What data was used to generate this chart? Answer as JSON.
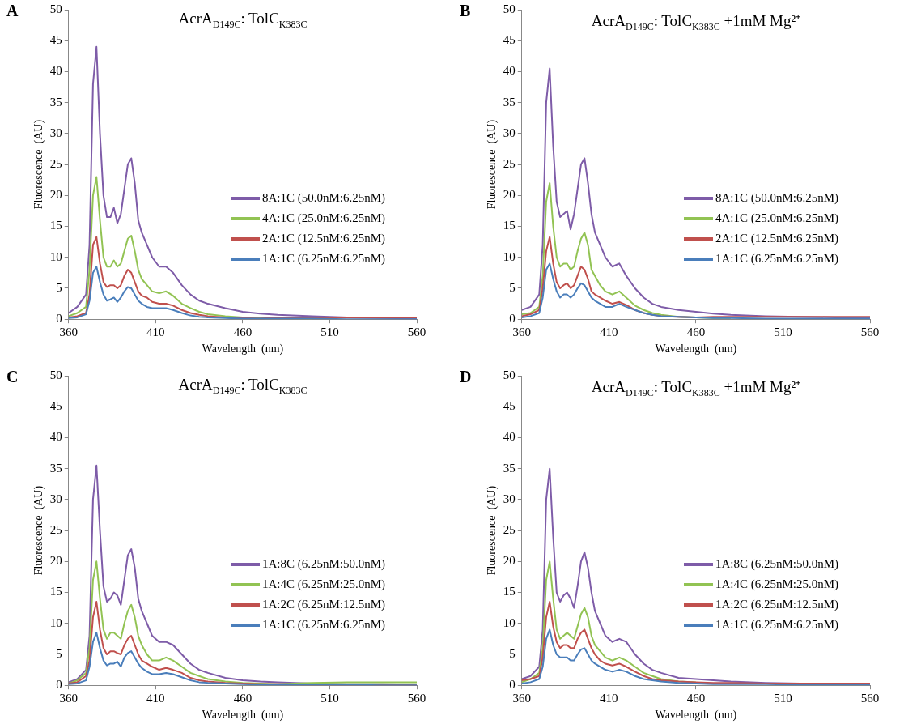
{
  "chart_data": [
    {
      "type": "line",
      "title": "AcrA$_{D149C}$:  TolC$_{K383C}$",
      "annotations": [
        "A"
      ],
      "xlabel": "Wavelength  (nm)",
      "ylabel": "Fluorescence  (AU)",
      "xlim": [
        360,
        560
      ],
      "xticks": [
        360,
        410,
        460,
        510,
        560
      ],
      "ylim": [
        0,
        50
      ],
      "yticks": [
        0,
        5,
        10,
        15,
        20,
        25,
        30,
        35,
        40,
        45,
        50
      ],
      "grid": false,
      "legend": "right",
      "marker": "none",
      "line_style": "solid",
      "x": [
        360,
        365,
        370,
        372,
        374,
        376,
        378,
        380,
        382,
        384,
        386,
        388,
        390,
        392,
        394,
        396,
        398,
        400,
        402,
        405,
        408,
        412,
        416,
        420,
        425,
        430,
        435,
        440,
        450,
        460,
        470,
        480,
        500,
        520,
        540,
        560
      ],
      "series": [
        {
          "name": "8A:1C (50.0nM:6.25nM)",
          "color": "#7e5ca8",
          "values": [
            1,
            2,
            4,
            12,
            38,
            44,
            30,
            20,
            16.5,
            16.5,
            18,
            15.5,
            17,
            21,
            25,
            26,
            22,
            16,
            14,
            12,
            10,
            8.5,
            8.5,
            7.5,
            5.5,
            4,
            3,
            2.5,
            1.8,
            1.2,
            0.9,
            0.7,
            0.5,
            0.3,
            0.2,
            0.1
          ]
        },
        {
          "name": "4A:1C (25.0nM:6.25nM)",
          "color": "#92c353",
          "values": [
            0.5,
            1,
            2,
            8,
            20,
            23,
            16,
            10,
            8.5,
            8.5,
            9.5,
            8.5,
            9,
            11,
            13,
            13.5,
            11,
            8,
            6.5,
            5.5,
            4.5,
            4.2,
            4.5,
            3.8,
            2.5,
            1.8,
            1.2,
            0.8,
            0.5,
            0.3,
            0.2,
            0.2,
            0.1,
            null,
            null,
            null
          ]
        },
        {
          "name": "2A:1C (12.5nM:6.25nM)",
          "color": "#c0504d",
          "values": [
            0.3,
            0.5,
            1,
            4,
            12,
            13.3,
            9,
            6,
            5.2,
            5.5,
            5.5,
            5,
            5.5,
            7,
            8,
            7.5,
            6,
            4.5,
            3.8,
            3.5,
            2.8,
            2.5,
            2.5,
            2.2,
            1.5,
            1,
            0.7,
            0.5,
            0.3,
            0.2,
            0.1,
            0.3,
            0.3,
            0.3,
            0.3,
            0.3
          ]
        },
        {
          "name": "1A:1C (6.25nM:6.25nM)",
          "color": "#4a7ebb",
          "values": [
            0.2,
            0.3,
            0.8,
            3,
            7.5,
            8.5,
            6,
            4,
            3,
            3.2,
            3.5,
            2.8,
            3.5,
            4.5,
            5.2,
            5,
            4,
            3,
            2.5,
            2,
            1.8,
            1.8,
            1.8,
            1.5,
            1,
            0.6,
            0.4,
            0.3,
            0.2,
            0.1,
            0.1,
            0.1,
            0.1,
            0,
            0,
            0
          ]
        }
      ]
    },
    {
      "type": "line",
      "title": "AcrA$_{D149C}$:  TolC$_{K383C}$  +1mM Mg²⁺",
      "annotations": [
        "B"
      ],
      "xlabel": "Wavelength  (nm)",
      "ylabel": "Fluorescence  (AU)",
      "xlim": [
        360,
        560
      ],
      "xticks": [
        360,
        410,
        460,
        510,
        560
      ],
      "ylim": [
        0,
        50
      ],
      "yticks": [
        0,
        5,
        10,
        15,
        20,
        25,
        30,
        35,
        40,
        45,
        50
      ],
      "grid": false,
      "legend": "right",
      "marker": "none",
      "line_style": "solid",
      "x": [
        360,
        365,
        370,
        372,
        374,
        376,
        378,
        380,
        382,
        384,
        386,
        388,
        390,
        392,
        394,
        396,
        398,
        400,
        402,
        405,
        408,
        412,
        416,
        420,
        425,
        430,
        435,
        440,
        450,
        460,
        470,
        480,
        500,
        520,
        540,
        560
      ],
      "series": [
        {
          "name": "8A:1C (50.0nM:6.25nM)",
          "color": "#7e5ca8",
          "values": [
            1.5,
            2,
            4,
            12,
            35,
            40.5,
            28,
            19,
            16.5,
            17,
            17.5,
            14.5,
            17,
            21,
            25,
            26,
            22,
            17,
            14,
            12,
            10,
            8.5,
            9,
            7,
            5,
            3.5,
            2.5,
            2,
            1.5,
            1.2,
            0.9,
            0.7,
            0.5,
            0.4,
            0.3,
            0.2
          ]
        },
        {
          "name": "4A:1C (25.0nM:6.25nM)",
          "color": "#92c353",
          "values": [
            0.8,
            1,
            2,
            7,
            19,
            22,
            15,
            10,
            8.5,
            9,
            9,
            8,
            8.5,
            11,
            13,
            14,
            12,
            8,
            7,
            5.5,
            4.5,
            4,
            4.5,
            3.5,
            2.2,
            1.5,
            1,
            0.7,
            0.4,
            0.3,
            0.2,
            0.2,
            null,
            null,
            null,
            null
          ]
        },
        {
          "name": "2A:1C (12.5nM:6.25nM)",
          "color": "#c0504d",
          "values": [
            0.5,
            0.8,
            1.5,
            5,
            11,
            13.3,
            9,
            6,
            5,
            5.5,
            5.8,
            5,
            5.5,
            7,
            8.5,
            8,
            6.5,
            4.5,
            4,
            3.5,
            3,
            2.5,
            2.8,
            2.3,
            1.5,
            1,
            0.7,
            0.5,
            0.4,
            0.3,
            0.4,
            0.4,
            0.4,
            0.4,
            0.4,
            0.4
          ]
        },
        {
          "name": "1A:1C (6.25nM:6.25nM)",
          "color": "#4a7ebb",
          "values": [
            0.3,
            0.5,
            1,
            3.5,
            8,
            9,
            6.5,
            4.5,
            3.5,
            4,
            4,
            3.5,
            4,
            5,
            5.8,
            5.5,
            4.5,
            3.5,
            3,
            2.5,
            2,
            2,
            2.5,
            2,
            1.5,
            1,
            0.7,
            0.5,
            0.4,
            0.3,
            0.2,
            0.2,
            0.1,
            0.1,
            0.1,
            0.1
          ]
        }
      ]
    },
    {
      "type": "line",
      "title": "AcrA$_{D149C}$:  TolC$_{K383C}$",
      "annotations": [
        "C"
      ],
      "xlabel": "Wavelength  (nm)",
      "ylabel": "Fluorescence  (AU)",
      "xlim": [
        360,
        560
      ],
      "xticks": [
        360,
        410,
        460,
        510,
        560
      ],
      "ylim": [
        0,
        50
      ],
      "yticks": [
        0,
        5,
        10,
        15,
        20,
        25,
        30,
        35,
        40,
        45,
        50
      ],
      "grid": false,
      "legend": "right",
      "marker": "none",
      "line_style": "solid",
      "x": [
        360,
        365,
        370,
        372,
        374,
        376,
        378,
        380,
        382,
        384,
        386,
        388,
        390,
        392,
        394,
        396,
        398,
        400,
        402,
        405,
        408,
        412,
        416,
        420,
        425,
        430,
        435,
        440,
        450,
        460,
        470,
        480,
        500,
        520,
        540,
        560
      ],
      "series": [
        {
          "name": "1A:8C (6.25nM:50.0nM)",
          "color": "#7e5ca8",
          "values": [
            0.5,
            1,
            2.5,
            8,
            30,
            35.5,
            25,
            16,
            13.5,
            14,
            15,
            14.5,
            13,
            17,
            21,
            22,
            19,
            14,
            12,
            10,
            8,
            7,
            7,
            6.5,
            5,
            3.5,
            2.5,
            2,
            1.2,
            0.8,
            0.6,
            0.5,
            0.3,
            0.2,
            0.2,
            0.1
          ]
        },
        {
          "name": "1A:4C (6.25nM:25.0nM)",
          "color": "#92c353",
          "values": [
            0.3,
            0.8,
            2,
            6,
            17,
            20,
            14,
            9,
            7.5,
            8.5,
            8.5,
            8,
            7.5,
            10,
            12,
            13,
            11,
            8,
            6.5,
            5,
            4,
            4,
            4.5,
            4,
            3,
            2,
            1.5,
            1,
            0.6,
            0.4,
            0.3,
            0.2,
            0.4,
            0.5,
            0.5,
            0.5
          ]
        },
        {
          "name": "1A:2C (6.25nM:12.5nM)",
          "color": "#c0504d",
          "values": [
            0.3,
            0.5,
            1.5,
            4,
            11,
            13.5,
            9,
            6,
            5,
            5.5,
            5.5,
            5.2,
            5,
            6.5,
            7.5,
            8,
            6.5,
            5,
            4,
            3.5,
            3,
            2.5,
            2.8,
            2.5,
            2,
            1.2,
            0.8,
            0.6,
            0.4,
            0.3,
            0.2,
            0.2,
            0.1,
            0.1,
            0.1,
            0.1
          ]
        },
        {
          "name": "1A:1C (6.25nM:6.25nM)",
          "color": "#4a7ebb",
          "values": [
            0.2,
            0.3,
            0.8,
            3,
            7,
            8.5,
            6,
            4,
            3.2,
            3.5,
            3.5,
            3.8,
            3,
            4.5,
            5.2,
            5.5,
            4.5,
            3.5,
            2.8,
            2.2,
            1.8,
            1.8,
            2,
            1.8,
            1.3,
            0.8,
            0.5,
            0.4,
            0.3,
            0.2,
            0.1,
            0.1,
            0.1,
            0.1,
            0,
            0
          ]
        }
      ]
    },
    {
      "type": "line",
      "title": "AcrA$_{D149C}$:  TolC$_{K383C}$  +1mM Mg²⁺",
      "annotations": [
        "D"
      ],
      "xlabel": "Wavelength  (nm)",
      "ylabel": "Fluorescence  (AU)",
      "xlim": [
        360,
        560
      ],
      "xticks": [
        360,
        410,
        460,
        510,
        560
      ],
      "ylim": [
        0,
        50
      ],
      "yticks": [
        0,
        5,
        10,
        15,
        20,
        25,
        30,
        35,
        40,
        45,
        50
      ],
      "grid": false,
      "legend": "right",
      "marker": "none",
      "line_style": "solid",
      "x": [
        360,
        365,
        370,
        372,
        374,
        376,
        378,
        380,
        382,
        384,
        386,
        388,
        390,
        392,
        394,
        396,
        398,
        400,
        402,
        405,
        408,
        412,
        416,
        420,
        425,
        430,
        435,
        440,
        450,
        460,
        470,
        480,
        500,
        520,
        540,
        560
      ],
      "series": [
        {
          "name": "1A:8C (6.25nM:50.0nM)",
          "color": "#7e5ca8",
          "values": [
            1,
            1.5,
            3,
            9,
            30,
            35,
            24,
            15,
            13.5,
            14.5,
            15,
            14,
            12.5,
            16,
            20,
            21.5,
            19,
            15,
            12,
            10,
            8,
            7,
            7.5,
            7,
            5,
            3.5,
            2.5,
            2,
            1.2,
            1,
            0.8,
            0.6,
            0.4,
            0.3,
            0.3,
            0.2
          ]
        },
        {
          "name": "1A:4C (6.25nM:25.0nM)",
          "color": "#92c353",
          "values": [
            0.5,
            1,
            2,
            6,
            17,
            20,
            14,
            9,
            7.5,
            8,
            8.5,
            8,
            7.5,
            9.5,
            11.5,
            12.5,
            11,
            8,
            6.5,
            5.5,
            4.5,
            4,
            4.5,
            4,
            3,
            2,
            1.5,
            1,
            0.6,
            0.5,
            null,
            null,
            null,
            null,
            null,
            null
          ]
        },
        {
          "name": "1A:2C (6.25nM:12.5nM)",
          "color": "#c0504d",
          "values": [
            0.8,
            1,
            1.5,
            4.5,
            11,
            13.5,
            9.5,
            7,
            6,
            6.5,
            6.5,
            6,
            6,
            7.5,
            8.5,
            9,
            7.5,
            6,
            5,
            4,
            3.5,
            3.2,
            3.5,
            3,
            2.2,
            1.5,
            1,
            0.8,
            0.6,
            0.5,
            0.4,
            0.4,
            0.3,
            0.3,
            0.3,
            0.3
          ]
        },
        {
          "name": "1A:1C (6.25nM:6.25nM)",
          "color": "#4a7ebb",
          "values": [
            0.3,
            0.5,
            1,
            3,
            7.5,
            9,
            6.5,
            5,
            4.5,
            4.5,
            4.5,
            4,
            4,
            5,
            5.8,
            6,
            5,
            4,
            3.5,
            3,
            2.5,
            2.2,
            2.5,
            2.2,
            1.5,
            1,
            0.8,
            0.6,
            0.4,
            0.3,
            0.2,
            0.2,
            0.2,
            0.1,
            0.1,
            0.1
          ]
        }
      ]
    }
  ]
}
